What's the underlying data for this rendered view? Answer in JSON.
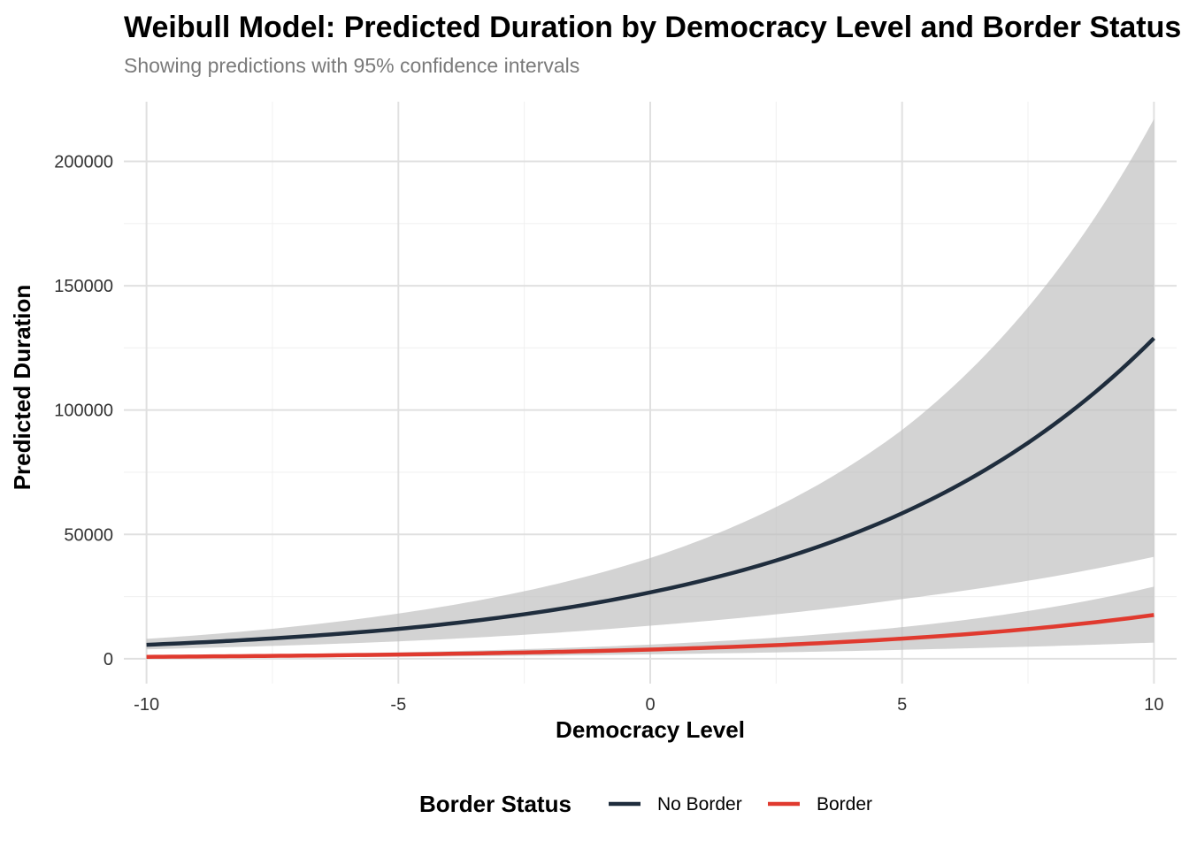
{
  "chart_data": {
    "type": "line",
    "title": "Weibull Model: Predicted Duration by Democracy Level and Border Status",
    "subtitle": "Showing predictions with 95% confidence intervals",
    "xlabel": "Democracy Level",
    "ylabel": "Predicted Duration",
    "xlim": [
      -10.45,
      10.45
    ],
    "ylim": [
      -10000,
      224000
    ],
    "x_ticks": [
      -10,
      -5,
      0,
      5,
      10
    ],
    "x_tick_labels": [
      "-10",
      "-5",
      "0",
      "5",
      "10"
    ],
    "y_ticks": [
      0,
      50000,
      100000,
      150000,
      200000
    ],
    "y_tick_labels": [
      "0",
      "50000",
      "100000",
      "150000",
      "200000"
    ],
    "grid": true,
    "legend": {
      "title": "Border Status",
      "placement": "bottom"
    },
    "series": [
      {
        "name": "No Border",
        "color": "#1f2d3d",
        "x": [
          -10,
          -5,
          0,
          5,
          10
        ],
        "values": [
          5600,
          12000,
          26700,
          58500,
          128900
        ],
        "lower": [
          3800,
          7000,
          13300,
          24000,
          41000
        ],
        "upper": [
          8000,
          18200,
          40500,
          92000,
          217000
        ]
      },
      {
        "name": "Border",
        "color": "#e03a2f",
        "x": [
          -10,
          -5,
          0,
          5,
          10
        ],
        "values": [
          780,
          1700,
          3700,
          8100,
          17600
        ],
        "lower": [
          350,
          800,
          1800,
          3600,
          6500
        ],
        "upper": [
          1250,
          2600,
          5700,
          12700,
          29000
        ]
      }
    ],
    "ribbon_color": "#bebebe"
  }
}
